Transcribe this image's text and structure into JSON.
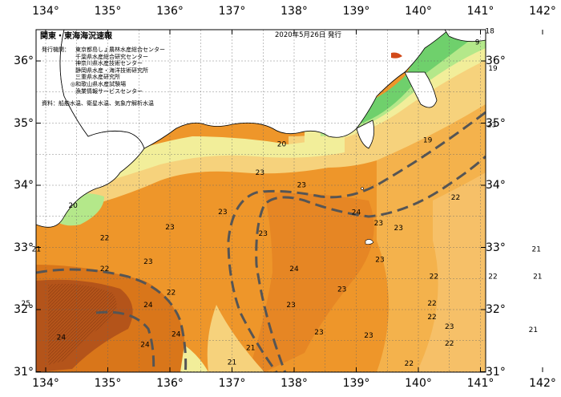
{
  "title": "関東・東海海況速報",
  "issued": "2020年5月26日 発行",
  "publisher_label": "発行機関：",
  "publishers": [
    "東京都島しょ農林水産総合センター",
    "千葉県水産総合研究センター",
    "神奈川県水産技術センター",
    "静岡県水産・海洋技術研究所",
    "三重県水産研究所",
    "◎和歌山県水産試験場",
    "漁業情報サービスセンター"
  ],
  "source": "資料：船舶水温、衛星水温、気象庁解析水温",
  "longitudes": [
    "134°",
    "135°",
    "136°",
    "137°",
    "138°",
    "139°",
    "140°",
    "141°",
    "142°"
  ],
  "latitudes": [
    "36°",
    "35°",
    "34°",
    "33°",
    "32°",
    "31°"
  ],
  "isotherm_labels": [
    {
      "text": "18",
      "lon": 141.15,
      "lat": 36.48
    },
    {
      "text": "9",
      "lon": 140.95,
      "lat": 36.3
    },
    {
      "text": "19",
      "lon": 141.2,
      "lat": 35.88
    },
    {
      "text": "23",
      "lon": 141.18,
      "lat": 34.97
    },
    {
      "text": "19",
      "lon": 140.15,
      "lat": 34.72
    },
    {
      "text": "20",
      "lon": 137.8,
      "lat": 34.66
    },
    {
      "text": "23",
      "lon": 137.45,
      "lat": 34.2
    },
    {
      "text": "23",
      "lon": 138.12,
      "lat": 34.0
    },
    {
      "text": "22",
      "lon": 140.6,
      "lat": 33.8
    },
    {
      "text": "20",
      "lon": 134.44,
      "lat": 33.67
    },
    {
      "text": "23",
      "lon": 136.85,
      "lat": 33.57
    },
    {
      "text": "24",
      "lon": 139.0,
      "lat": 33.56
    },
    {
      "text": "23",
      "lon": 139.36,
      "lat": 33.39
    },
    {
      "text": "23",
      "lon": 139.68,
      "lat": 33.31
    },
    {
      "text": "23",
      "lon": 136.0,
      "lat": 33.32
    },
    {
      "text": "23",
      "lon": 137.5,
      "lat": 33.22
    },
    {
      "text": "22",
      "lon": 134.95,
      "lat": 33.15
    },
    {
      "text": "21",
      "lon": 133.85,
      "lat": 32.97
    },
    {
      "text": "21",
      "lon": 141.9,
      "lat": 32.97
    },
    {
      "text": "23",
      "lon": 135.65,
      "lat": 32.77
    },
    {
      "text": "23",
      "lon": 139.38,
      "lat": 32.8
    },
    {
      "text": "24",
      "lon": 138.0,
      "lat": 32.65
    },
    {
      "text": "22",
      "lon": 140.25,
      "lat": 32.53
    },
    {
      "text": "22",
      "lon": 141.2,
      "lat": 32.53
    },
    {
      "text": "21",
      "lon": 141.92,
      "lat": 32.53
    },
    {
      "text": "22",
      "lon": 134.95,
      "lat": 32.65
    },
    {
      "text": "23",
      "lon": 138.77,
      "lat": 32.32
    },
    {
      "text": "22",
      "lon": 136.02,
      "lat": 32.27
    },
    {
      "text": "24",
      "lon": 135.65,
      "lat": 32.07
    },
    {
      "text": "22",
      "lon": 140.22,
      "lat": 32.1
    },
    {
      "text": "25",
      "lon": 133.68,
      "lat": 32.1
    },
    {
      "text": "23",
      "lon": 137.95,
      "lat": 32.07
    },
    {
      "text": "22",
      "lon": 140.22,
      "lat": 31.88
    },
    {
      "text": "23",
      "lon": 140.5,
      "lat": 31.72
    },
    {
      "text": "21",
      "lon": 141.85,
      "lat": 31.67
    },
    {
      "text": "23",
      "lon": 138.4,
      "lat": 31.63
    },
    {
      "text": "23",
      "lon": 139.2,
      "lat": 31.58
    },
    {
      "text": "24",
      "lon": 134.25,
      "lat": 31.55
    },
    {
      "text": "24",
      "lon": 136.1,
      "lat": 31.6
    },
    {
      "text": "24",
      "lon": 135.6,
      "lat": 31.43
    },
    {
      "text": "22",
      "lon": 140.5,
      "lat": 31.45
    },
    {
      "text": "21",
      "lon": 137.3,
      "lat": 31.38
    },
    {
      "text": "22",
      "lon": 139.85,
      "lat": 31.13
    },
    {
      "text": "21",
      "lon": 137.0,
      "lat": 31.15
    }
  ],
  "colors": {
    "cold": "#19a8e0",
    "cyan": "#7ad7ee",
    "green": "#6fd06c",
    "lightgreen": "#b4e88a",
    "yellow": "#f2ee9a",
    "pale": "#f6d27c",
    "orange_light": "#f4b24c",
    "orange": "#ee962a",
    "orange_dark": "#d9761a",
    "brown": "#b4541a",
    "land": "#ffffff",
    "current": "#555555"
  }
}
